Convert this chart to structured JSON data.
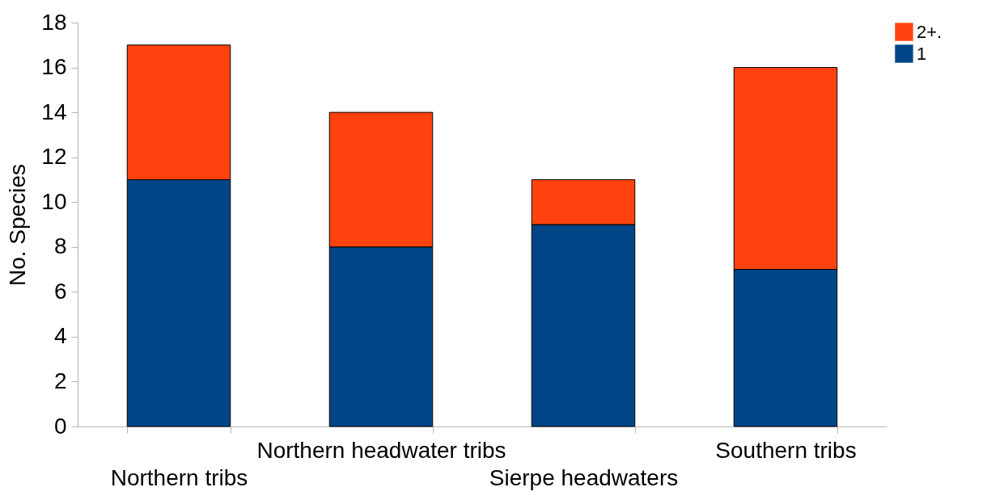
{
  "chart_data": {
    "type": "bar",
    "stacked": true,
    "ylabel": "No. Species",
    "categories": [
      "Northern tribs",
      "Northern headwater tribs",
      "Sierpe headwaters",
      "Southern tribs"
    ],
    "series": [
      {
        "name": "1",
        "color": "#004586",
        "values": [
          11,
          8,
          9,
          7
        ]
      },
      {
        "name": "2+.",
        "color": "#ff420e",
        "values": [
          6,
          6,
          2,
          9
        ]
      }
    ],
    "ylim": [
      0,
      18
    ],
    "yticks": [
      0,
      2,
      4,
      6,
      8,
      10,
      12,
      14,
      16,
      18
    ],
    "grid": false,
    "legend": "right"
  }
}
